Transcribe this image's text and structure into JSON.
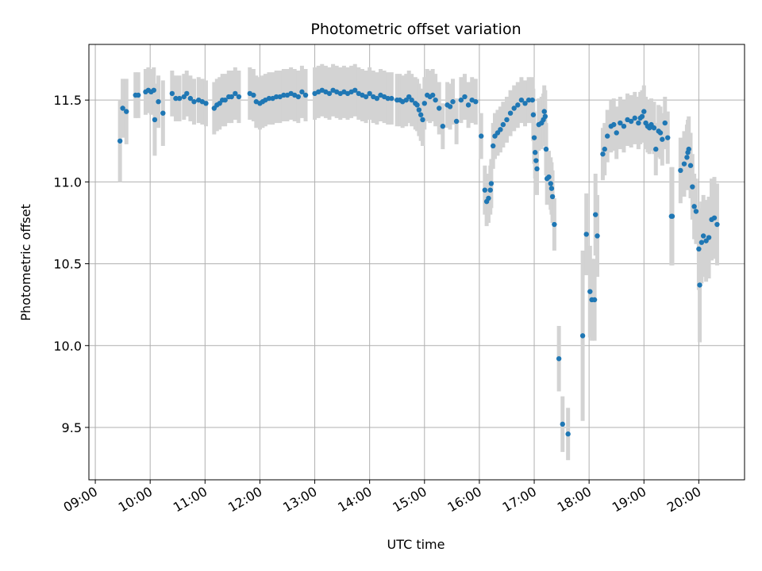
{
  "chart_data": {
    "type": "scatter",
    "title": "Photometric offset variation",
    "xlabel": "UTC time",
    "ylabel": "Photometric offset",
    "x_range": [
      "08:53",
      "20:50"
    ],
    "ylim": [
      9.18,
      11.84
    ],
    "grid": true,
    "x_ticks": [
      "09:00",
      "10:00",
      "11:00",
      "12:00",
      "13:00",
      "14:00",
      "15:00",
      "16:00",
      "17:00",
      "18:00",
      "19:00",
      "20:00"
    ],
    "y_ticks": [
      "9.5",
      "10.0",
      "10.5",
      "11.0",
      "11.5"
    ],
    "colors": {
      "points": "#1f77b4",
      "errorbars": "#d3d3d3",
      "grid": "#b0b0b0"
    },
    "series": [
      {
        "points": [
          [
            "09:27",
            11.25,
            0.25
          ],
          [
            "09:30",
            11.45,
            0.18
          ],
          [
            "09:34",
            11.43,
            0.2
          ],
          [
            "09:44",
            11.53,
            0.14
          ],
          [
            "09:47",
            11.53,
            0.14
          ],
          [
            "09:55",
            11.55,
            0.14
          ],
          [
            "09:58",
            11.56,
            0.14
          ],
          [
            "10:01",
            11.55,
            0.14
          ],
          [
            "10:04",
            11.56,
            0.14
          ],
          [
            "10:05",
            11.38,
            0.22
          ],
          [
            "10:09",
            11.49,
            0.16
          ],
          [
            "10:14",
            11.42,
            0.2
          ],
          [
            "10:24",
            11.54,
            0.14
          ],
          [
            "10:28",
            11.51,
            0.14
          ],
          [
            "10:32",
            11.51,
            0.14
          ],
          [
            "10:37",
            11.52,
            0.14
          ],
          [
            "10:40",
            11.54,
            0.14
          ],
          [
            "10:44",
            11.51,
            0.14
          ],
          [
            "10:48",
            11.49,
            0.14
          ],
          [
            "10:53",
            11.5,
            0.14
          ],
          [
            "10:57",
            11.49,
            0.14
          ],
          [
            "11:01",
            11.48,
            0.14
          ],
          [
            "11:10",
            11.45,
            0.16
          ],
          [
            "11:13",
            11.47,
            0.16
          ],
          [
            "11:16",
            11.48,
            0.16
          ],
          [
            "11:19",
            11.5,
            0.16
          ],
          [
            "11:22",
            11.5,
            0.16
          ],
          [
            "11:26",
            11.52,
            0.16
          ],
          [
            "11:29",
            11.52,
            0.16
          ],
          [
            "11:33",
            11.54,
            0.16
          ],
          [
            "11:37",
            11.52,
            0.16
          ],
          [
            "11:49",
            11.54,
            0.16
          ],
          [
            "11:53",
            11.53,
            0.16
          ],
          [
            "11:56",
            11.49,
            0.16
          ],
          [
            "12:00",
            11.48,
            0.16
          ],
          [
            "12:03",
            11.49,
            0.16
          ],
          [
            "12:06",
            11.5,
            0.16
          ],
          [
            "12:10",
            11.51,
            0.16
          ],
          [
            "12:14",
            11.51,
            0.16
          ],
          [
            "12:18",
            11.52,
            0.16
          ],
          [
            "12:22",
            11.52,
            0.16
          ],
          [
            "12:26",
            11.53,
            0.16
          ],
          [
            "12:30",
            11.53,
            0.16
          ],
          [
            "12:34",
            11.54,
            0.16
          ],
          [
            "12:38",
            11.53,
            0.16
          ],
          [
            "12:42",
            11.52,
            0.16
          ],
          [
            "12:46",
            11.55,
            0.16
          ],
          [
            "12:50",
            11.53,
            0.16
          ],
          [
            "13:00",
            11.54,
            0.16
          ],
          [
            "13:04",
            11.55,
            0.16
          ],
          [
            "13:08",
            11.56,
            0.16
          ],
          [
            "13:12",
            11.55,
            0.16
          ],
          [
            "13:16",
            11.54,
            0.16
          ],
          [
            "13:20",
            11.56,
            0.16
          ],
          [
            "13:24",
            11.55,
            0.16
          ],
          [
            "13:28",
            11.54,
            0.16
          ],
          [
            "13:32",
            11.55,
            0.16
          ],
          [
            "13:36",
            11.54,
            0.16
          ],
          [
            "13:40",
            11.55,
            0.16
          ],
          [
            "13:44",
            11.56,
            0.16
          ],
          [
            "13:48",
            11.54,
            0.16
          ],
          [
            "13:52",
            11.53,
            0.16
          ],
          [
            "13:56",
            11.52,
            0.16
          ],
          [
            "14:00",
            11.54,
            0.16
          ],
          [
            "14:04",
            11.52,
            0.16
          ],
          [
            "14:08",
            11.51,
            0.16
          ],
          [
            "14:12",
            11.53,
            0.16
          ],
          [
            "14:16",
            11.52,
            0.16
          ],
          [
            "14:20",
            11.51,
            0.16
          ],
          [
            "14:24",
            11.51,
            0.16
          ],
          [
            "14:30",
            11.5,
            0.16
          ],
          [
            "14:33",
            11.5,
            0.16
          ],
          [
            "14:36",
            11.49,
            0.16
          ],
          [
            "14:40",
            11.5,
            0.16
          ],
          [
            "14:43",
            11.52,
            0.16
          ],
          [
            "14:46",
            11.5,
            0.16
          ],
          [
            "14:50",
            11.48,
            0.16
          ],
          [
            "14:52",
            11.47,
            0.16
          ],
          [
            "14:54",
            11.44,
            0.16
          ],
          [
            "14:56",
            11.41,
            0.16
          ],
          [
            "14:58",
            11.38,
            0.16
          ],
          [
            "15:00",
            11.48,
            0.16
          ],
          [
            "15:03",
            11.53,
            0.16
          ],
          [
            "15:06",
            11.52,
            0.16
          ],
          [
            "15:09",
            11.53,
            0.16
          ],
          [
            "15:12",
            11.5,
            0.16
          ],
          [
            "15:16",
            11.45,
            0.16
          ],
          [
            "15:20",
            11.34,
            0.14
          ],
          [
            "15:25",
            11.47,
            0.14
          ],
          [
            "15:28",
            11.46,
            0.14
          ],
          [
            "15:31",
            11.49,
            0.14
          ],
          [
            "15:35",
            11.37,
            0.14
          ],
          [
            "15:40",
            11.5,
            0.14
          ],
          [
            "15:44",
            11.52,
            0.14
          ],
          [
            "15:48",
            11.47,
            0.14
          ],
          [
            "15:52",
            11.5,
            0.14
          ],
          [
            "15:56",
            11.49,
            0.14
          ],
          [
            "16:02",
            11.28,
            0.14
          ],
          [
            "16:06",
            10.95,
            0.15
          ],
          [
            "16:08",
            10.88,
            0.15
          ],
          [
            "16:10",
            10.9,
            0.15
          ],
          [
            "16:12",
            10.95,
            0.15
          ],
          [
            "16:13",
            10.99,
            0.15
          ],
          [
            "16:15",
            11.22,
            0.14
          ],
          [
            "16:17",
            11.28,
            0.14
          ],
          [
            "16:20",
            11.3,
            0.14
          ],
          [
            "16:23",
            11.32,
            0.14
          ],
          [
            "16:26",
            11.35,
            0.14
          ],
          [
            "16:30",
            11.38,
            0.14
          ],
          [
            "16:34",
            11.42,
            0.14
          ],
          [
            "16:38",
            11.45,
            0.14
          ],
          [
            "16:42",
            11.47,
            0.14
          ],
          [
            "16:46",
            11.5,
            0.14
          ],
          [
            "16:50",
            11.48,
            0.14
          ],
          [
            "16:54",
            11.5,
            0.14
          ],
          [
            "16:58",
            11.5,
            0.14
          ],
          [
            "16:59",
            11.41,
            0.16
          ],
          [
            "17:00",
            11.27,
            0.16
          ],
          [
            "17:01",
            11.18,
            0.16
          ],
          [
            "17:02",
            11.13,
            0.16
          ],
          [
            "17:03",
            11.08,
            0.16
          ],
          [
            "17:05",
            11.35,
            0.16
          ],
          [
            "17:08",
            11.36,
            0.16
          ],
          [
            "17:10",
            11.38,
            0.16
          ],
          [
            "17:11",
            11.43,
            0.16
          ],
          [
            "17:12",
            11.4,
            0.16
          ],
          [
            "17:13",
            11.2,
            0.16
          ],
          [
            "17:14",
            11.02,
            0.16
          ],
          [
            "17:16",
            11.03,
            0.16
          ],
          [
            "17:18",
            10.99,
            0.16
          ],
          [
            "17:19",
            10.96,
            0.16
          ],
          [
            "17:20",
            10.91,
            0.16
          ],
          [
            "17:22",
            10.74,
            0.16
          ],
          [
            "17:27",
            9.92,
            0.2
          ],
          [
            "17:31",
            9.52,
            0.17
          ],
          [
            "17:37",
            9.46,
            0.16
          ],
          [
            "17:53",
            10.06,
            0.52
          ],
          [
            "17:57",
            10.68,
            0.25
          ],
          [
            "18:01",
            10.33,
            0.28
          ],
          [
            "18:03",
            10.28,
            0.25
          ],
          [
            "18:06",
            10.28,
            0.25
          ],
          [
            "18:07",
            10.8,
            0.25
          ],
          [
            "18:09",
            10.67,
            0.25
          ],
          [
            "18:15",
            11.17,
            0.16
          ],
          [
            "18:17",
            11.2,
            0.16
          ],
          [
            "18:20",
            11.28,
            0.16
          ],
          [
            "18:24",
            11.34,
            0.16
          ],
          [
            "18:27",
            11.35,
            0.16
          ],
          [
            "18:30",
            11.3,
            0.16
          ],
          [
            "18:34",
            11.36,
            0.16
          ],
          [
            "18:38",
            11.34,
            0.16
          ],
          [
            "18:42",
            11.38,
            0.16
          ],
          [
            "18:46",
            11.37,
            0.16
          ],
          [
            "18:50",
            11.39,
            0.16
          ],
          [
            "18:54",
            11.36,
            0.16
          ],
          [
            "18:56",
            11.39,
            0.16
          ],
          [
            "18:58",
            11.4,
            0.16
          ],
          [
            "19:00",
            11.43,
            0.16
          ],
          [
            "19:02",
            11.36,
            0.16
          ],
          [
            "19:04",
            11.34,
            0.16
          ],
          [
            "19:06",
            11.33,
            0.16
          ],
          [
            "19:08",
            11.35,
            0.16
          ],
          [
            "19:11",
            11.33,
            0.16
          ],
          [
            "19:13",
            11.2,
            0.16
          ],
          [
            "19:16",
            11.31,
            0.16
          ],
          [
            "19:18",
            11.3,
            0.16
          ],
          [
            "19:20",
            11.26,
            0.16
          ],
          [
            "19:23",
            11.36,
            0.16
          ],
          [
            "19:26",
            11.27,
            0.16
          ],
          [
            "19:30",
            10.79,
            0.3
          ],
          [
            "19:31",
            10.79,
            0.3
          ],
          [
            "19:40",
            11.07,
            0.2
          ],
          [
            "19:44",
            11.11,
            0.2
          ],
          [
            "19:47",
            11.15,
            0.2
          ],
          [
            "19:48",
            11.18,
            0.2
          ],
          [
            "19:49",
            11.2,
            0.2
          ],
          [
            "19:51",
            11.1,
            0.2
          ],
          [
            "19:53",
            10.97,
            0.2
          ],
          [
            "19:55",
            10.85,
            0.2
          ],
          [
            "19:57",
            10.82,
            0.2
          ],
          [
            "20:00",
            10.59,
            0.25
          ],
          [
            "20:01",
            10.37,
            0.35
          ],
          [
            "20:03",
            10.63,
            0.25
          ],
          [
            "20:05",
            10.67,
            0.25
          ],
          [
            "20:08",
            10.64,
            0.25
          ],
          [
            "20:11",
            10.66,
            0.25
          ],
          [
            "20:14",
            10.77,
            0.25
          ],
          [
            "20:17",
            10.78,
            0.25
          ],
          [
            "20:20",
            10.74,
            0.25
          ]
        ]
      }
    ]
  }
}
